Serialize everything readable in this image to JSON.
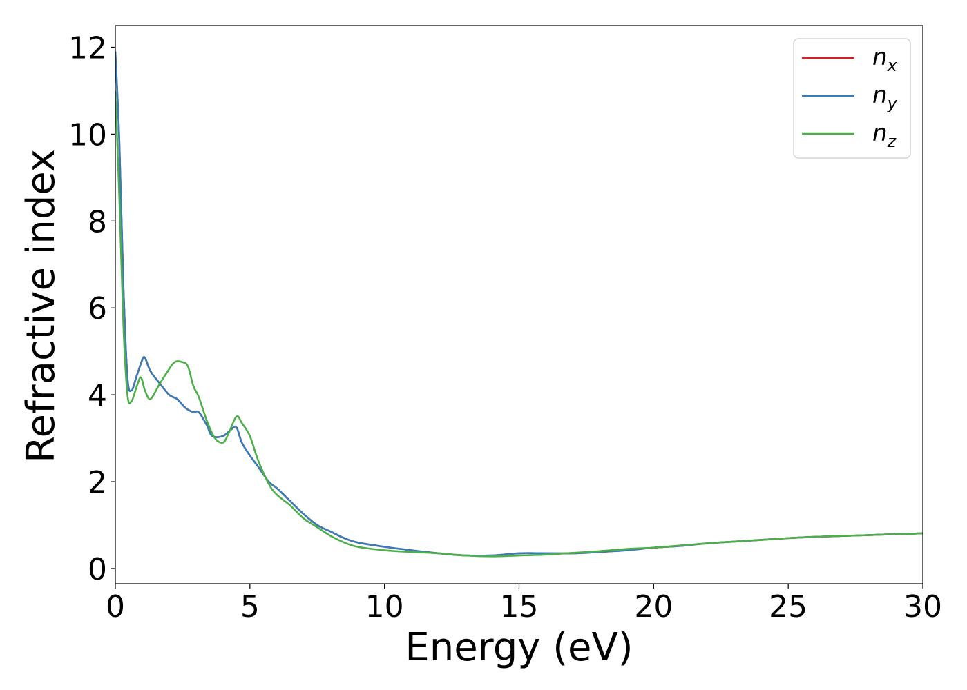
{
  "chart_data": {
    "type": "line",
    "title": "",
    "xlabel": "Energy (eV)",
    "ylabel": "Refractive index",
    "xlim": [
      0,
      30
    ],
    "ylim": [
      -0.35,
      12.5
    ],
    "xticks": [
      0,
      5,
      10,
      15,
      20,
      25,
      30
    ],
    "yticks": [
      0,
      2,
      4,
      6,
      8,
      10,
      12
    ],
    "grid": false,
    "legend_position": "top-right",
    "series": [
      {
        "name": "n",
        "subscript": "x",
        "color": "#e41a1c",
        "x": [
          0,
          0.15,
          0.3,
          0.45,
          0.6,
          0.8,
          1.0,
          1.1,
          1.3,
          1.6,
          2.0,
          2.3,
          2.6,
          2.9,
          3.1,
          3.4,
          3.6,
          4.0,
          4.3,
          4.5,
          4.7,
          5.0,
          5.3,
          5.7,
          6.0,
          6.5,
          7.0,
          7.5,
          8.0,
          8.5,
          9.0,
          10.0,
          11.0,
          12.0,
          13.0,
          14.0,
          15.0,
          16.0,
          17.0,
          18.0,
          19.0,
          20.0,
          21.0,
          22.0,
          23.0,
          24.0,
          25.0,
          26.0,
          27.0,
          28.0,
          29.0,
          30.0
        ],
        "y": [
          11.9,
          9.8,
          6.5,
          4.4,
          4.1,
          4.45,
          4.8,
          4.85,
          4.55,
          4.3,
          4.0,
          3.9,
          3.7,
          3.6,
          3.6,
          3.3,
          3.05,
          3.05,
          3.2,
          3.25,
          2.9,
          2.6,
          2.35,
          2.0,
          1.85,
          1.55,
          1.25,
          1.0,
          0.85,
          0.7,
          0.6,
          0.5,
          0.42,
          0.35,
          0.3,
          0.3,
          0.35,
          0.35,
          0.35,
          0.38,
          0.42,
          0.48,
          0.52,
          0.58,
          0.62,
          0.66,
          0.7,
          0.73,
          0.75,
          0.77,
          0.79,
          0.81
        ]
      },
      {
        "name": "n",
        "subscript": "y",
        "color": "#377eb8",
        "x": [
          0,
          0.15,
          0.3,
          0.45,
          0.6,
          0.8,
          1.0,
          1.1,
          1.3,
          1.6,
          2.0,
          2.3,
          2.6,
          2.9,
          3.1,
          3.4,
          3.6,
          4.0,
          4.3,
          4.5,
          4.7,
          5.0,
          5.3,
          5.7,
          6.0,
          6.5,
          7.0,
          7.5,
          8.0,
          8.5,
          9.0,
          10.0,
          11.0,
          12.0,
          13.0,
          14.0,
          15.0,
          16.0,
          17.0,
          18.0,
          19.0,
          20.0,
          21.0,
          22.0,
          23.0,
          24.0,
          25.0,
          26.0,
          27.0,
          28.0,
          29.0,
          30.0
        ],
        "y": [
          11.9,
          9.8,
          6.5,
          4.4,
          4.1,
          4.45,
          4.8,
          4.85,
          4.55,
          4.3,
          4.0,
          3.9,
          3.7,
          3.6,
          3.6,
          3.3,
          3.05,
          3.05,
          3.2,
          3.25,
          2.9,
          2.6,
          2.35,
          2.0,
          1.85,
          1.55,
          1.25,
          1.0,
          0.85,
          0.7,
          0.6,
          0.5,
          0.42,
          0.35,
          0.3,
          0.3,
          0.35,
          0.35,
          0.35,
          0.38,
          0.42,
          0.48,
          0.52,
          0.58,
          0.62,
          0.66,
          0.7,
          0.73,
          0.75,
          0.77,
          0.79,
          0.81
        ]
      },
      {
        "name": "n",
        "subscript": "z",
        "color": "#4daf4a",
        "x": [
          0,
          0.15,
          0.3,
          0.45,
          0.6,
          0.8,
          0.95,
          1.1,
          1.3,
          1.6,
          1.9,
          2.2,
          2.5,
          2.7,
          2.9,
          3.1,
          3.4,
          3.7,
          4.0,
          4.2,
          4.5,
          4.7,
          5.0,
          5.3,
          5.7,
          6.0,
          6.5,
          7.0,
          7.5,
          8.0,
          8.5,
          9.0,
          10.0,
          11.0,
          12.0,
          13.0,
          14.0,
          15.0,
          16.0,
          17.0,
          18.0,
          19.0,
          20.0,
          21.0,
          22.0,
          23.0,
          24.0,
          25.0,
          26.0,
          27.0,
          28.0,
          29.0,
          30.0
        ],
        "y": [
          11.0,
          8.5,
          5.6,
          4.0,
          3.85,
          4.2,
          4.4,
          4.1,
          3.9,
          4.2,
          4.5,
          4.75,
          4.75,
          4.65,
          4.2,
          3.95,
          3.4,
          3.0,
          2.9,
          3.1,
          3.5,
          3.35,
          3.05,
          2.5,
          1.95,
          1.7,
          1.45,
          1.15,
          0.95,
          0.75,
          0.6,
          0.5,
          0.42,
          0.38,
          0.35,
          0.3,
          0.28,
          0.3,
          0.32,
          0.36,
          0.4,
          0.45,
          0.48,
          0.53,
          0.58,
          0.62,
          0.66,
          0.7,
          0.73,
          0.75,
          0.77,
          0.79,
          0.81
        ]
      }
    ]
  }
}
